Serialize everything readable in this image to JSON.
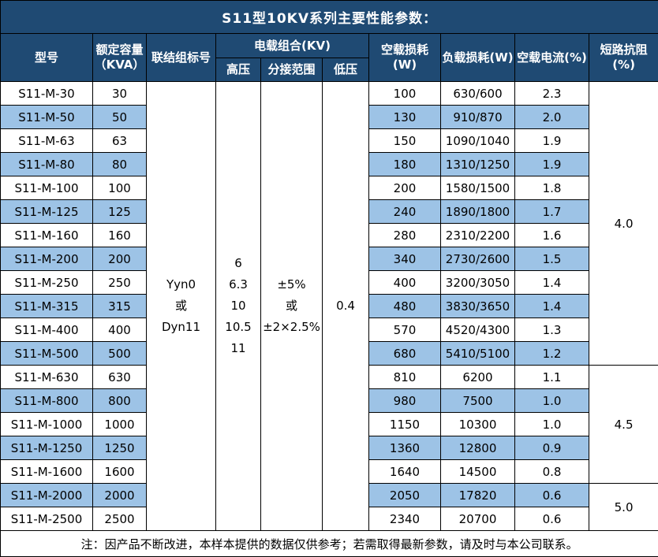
{
  "title": "S11型10KV系列主要性能参数：",
  "columns": {
    "model": "型号",
    "capacity_lines": [
      "额定容量",
      "（KVA）"
    ],
    "connection": "联结组标号",
    "voltage_group": "电载组合(KV)",
    "hv": "高压",
    "tap_range": "分接范围",
    "lv": "低压",
    "no_load_loss": "空载损耗(W)",
    "load_loss": "负载损耗(W)",
    "no_load_current": "空载电流(%)",
    "impedance": "短路抗阻(%)"
  },
  "merged": {
    "connection_lines": [
      "Yyn0",
      "或",
      "Dyn11"
    ],
    "hv_lines": [
      "6",
      "6.3",
      "10",
      "10.5",
      "11"
    ],
    "tap_lines": [
      "±5%",
      "或",
      "±2×2.5%"
    ],
    "lv_value": "0.4"
  },
  "rows": [
    {
      "model": "S11-M-30",
      "capacity": "30",
      "no_load_loss": "100",
      "load_loss": "630/600",
      "no_load_current": "2.3"
    },
    {
      "model": "S11-M-50",
      "capacity": "50",
      "no_load_loss": "130",
      "load_loss": "910/870",
      "no_load_current": "2.0"
    },
    {
      "model": "S11-M-63",
      "capacity": "63",
      "no_load_loss": "150",
      "load_loss": "1090/1040",
      "no_load_current": "1.9"
    },
    {
      "model": "S11-M-80",
      "capacity": "80",
      "no_load_loss": "180",
      "load_loss": "1310/1250",
      "no_load_current": "1.9"
    },
    {
      "model": "S11-M-100",
      "capacity": "100",
      "no_load_loss": "200",
      "load_loss": "1580/1500",
      "no_load_current": "1.8"
    },
    {
      "model": "S11-M-125",
      "capacity": "125",
      "no_load_loss": "240",
      "load_loss": "1890/1800",
      "no_load_current": "1.7"
    },
    {
      "model": "S11-M-160",
      "capacity": "160",
      "no_load_loss": "280",
      "load_loss": "2310/2200",
      "no_load_current": "1.6"
    },
    {
      "model": "S11-M-200",
      "capacity": "200",
      "no_load_loss": "340",
      "load_loss": "2730/2600",
      "no_load_current": "1.5"
    },
    {
      "model": "S11-M-250",
      "capacity": "250",
      "no_load_loss": "400",
      "load_loss": "3200/3050",
      "no_load_current": "1.4"
    },
    {
      "model": "S11-M-315",
      "capacity": "315",
      "no_load_loss": "480",
      "load_loss": "3830/3650",
      "no_load_current": "1.4"
    },
    {
      "model": "S11-M-400",
      "capacity": "400",
      "no_load_loss": "570",
      "load_loss": "4520/4300",
      "no_load_current": "1.3"
    },
    {
      "model": "S11-M-500",
      "capacity": "500",
      "no_load_loss": "680",
      "load_loss": "5410/5100",
      "no_load_current": "1.2"
    },
    {
      "model": "S11-M-630",
      "capacity": "630",
      "no_load_loss": "810",
      "load_loss": "6200",
      "no_load_current": "1.1"
    },
    {
      "model": "S11-M-800",
      "capacity": "800",
      "no_load_loss": "980",
      "load_loss": "7500",
      "no_load_current": "1.0"
    },
    {
      "model": "S11-M-1000",
      "capacity": "1000",
      "no_load_loss": "1150",
      "load_loss": "10300",
      "no_load_current": "1.0"
    },
    {
      "model": "S11-M-1250",
      "capacity": "1250",
      "no_load_loss": "1360",
      "load_loss": "12800",
      "no_load_current": "0.9"
    },
    {
      "model": "S11-M-1600",
      "capacity": "1600",
      "no_load_loss": "1640",
      "load_loss": "14500",
      "no_load_current": "0.8"
    },
    {
      "model": "S11-M-2000",
      "capacity": "2000",
      "no_load_loss": "2050",
      "load_loss": "17820",
      "no_load_current": "0.6"
    },
    {
      "model": "S11-M-2500",
      "capacity": "2500",
      "no_load_loss": "2340",
      "load_loss": "20700",
      "no_load_current": "0.6"
    }
  ],
  "impedance_groups": [
    {
      "value": "4.0",
      "span": 12
    },
    {
      "value": "4.5",
      "span": 5
    },
    {
      "value": "5.0",
      "span": 2
    }
  ],
  "note": "注：因产品不断改进，本样本提供的数据仅供参考；若需取得最新参数，请及时与本公司联系。",
  "colors": {
    "header_bg": "#1F4A73",
    "header_text": "#FFFFFF",
    "stripe_bg": "#9DC3E6",
    "row_bg": "#FFFFFF",
    "border": "#000000",
    "text": "#000000"
  }
}
